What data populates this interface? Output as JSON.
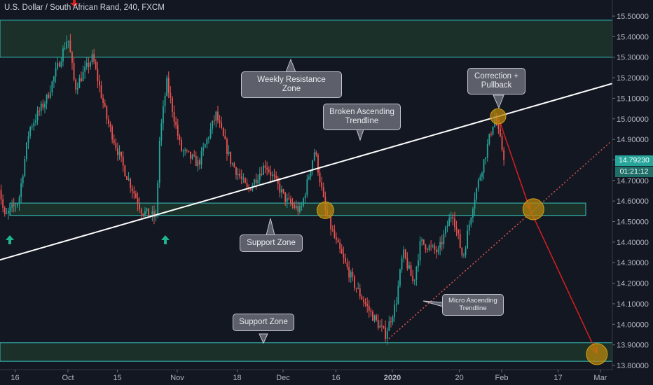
{
  "symbol": "U.S. Dollar / South African Rand, 240, FXCM",
  "colors": {
    "background": "#131722",
    "zone_fill": "#1e3a2b",
    "zone_border": "#37c5c5",
    "trendline": "#ffffff",
    "micro_trend": "#d9534f",
    "projection": "#d91e1e",
    "up_candle": "#26a69a",
    "down_candle": "#ef5350",
    "marker": "#b8860b",
    "up_arrow": "#1fb58c"
  },
  "chart_data": {
    "type": "candlestick",
    "x_ticks": [
      "16",
      "Oct",
      "15",
      "Nov",
      "18",
      "Dec",
      "16",
      "2020",
      "20",
      "Feb",
      "17",
      "Mar"
    ],
    "y_ticks": [
      "15.50000",
      "15.40000",
      "15.30000",
      "15.20000",
      "15.10000",
      "15.00000",
      "14.90000",
      "14.80000",
      "14.70000",
      "14.60000",
      "14.50000",
      "14.40000",
      "14.30000",
      "14.20000",
      "14.10000",
      "14.00000",
      "13.90000",
      "13.80000"
    ],
    "ylim": [
      13.79,
      15.52
    ],
    "current_price": "14.79230",
    "countdown": "01:21:12",
    "price_path": [
      {
        "date": "Sep 11",
        "price": 14.72
      },
      {
        "date": "Sep 13",
        "price": 14.52
      },
      {
        "date": "Sep 17",
        "price": 14.6
      },
      {
        "date": "Sep 20",
        "price": 14.95
      },
      {
        "date": "Sep 25",
        "price": 15.1
      },
      {
        "date": "Oct 1",
        "price": 15.4
      },
      {
        "date": "Oct 3",
        "price": 15.15
      },
      {
        "date": "Oct 8",
        "price": 15.3
      },
      {
        "date": "Oct 12",
        "price": 15.0
      },
      {
        "date": "Oct 17",
        "price": 14.75
      },
      {
        "date": "Oct 22",
        "price": 14.55
      },
      {
        "date": "Oct 26",
        "price": 14.52
      },
      {
        "date": "Oct 27",
        "price": 14.9
      },
      {
        "date": "Oct 29",
        "price": 15.18
      },
      {
        "date": "Nov 2",
        "price": 14.85
      },
      {
        "date": "Nov 7",
        "price": 14.78
      },
      {
        "date": "Nov 12",
        "price": 15.02
      },
      {
        "date": "Nov 16",
        "price": 14.8
      },
      {
        "date": "Nov 21",
        "price": 14.65
      },
      {
        "date": "Nov 26",
        "price": 14.78
      },
      {
        "date": "Dec 2",
        "price": 14.6
      },
      {
        "date": "Dec 6",
        "price": 14.55
      },
      {
        "date": "Dec 10",
        "price": 14.85
      },
      {
        "date": "Dec 13",
        "price": 14.55
      },
      {
        "date": "Dec 16",
        "price": 14.4
      },
      {
        "date": "Dec 21",
        "price": 14.2
      },
      {
        "date": "Dec 26",
        "price": 14.05
      },
      {
        "date": "Dec 30",
        "price": 13.95
      },
      {
        "date": "Jan 2",
        "price": 14.1
      },
      {
        "date": "Jan 4",
        "price": 14.35
      },
      {
        "date": "Jan 7",
        "price": 14.2
      },
      {
        "date": "Jan 9",
        "price": 14.4
      },
      {
        "date": "Jan 14",
        "price": 14.35
      },
      {
        "date": "Jan 18",
        "price": 14.55
      },
      {
        "date": "Jan 21",
        "price": 14.32
      },
      {
        "date": "Jan 24",
        "price": 14.6
      },
      {
        "date": "Jan 27",
        "price": 14.8
      },
      {
        "date": "Jan 30",
        "price": 15.01
      },
      {
        "date": "Feb 2",
        "price": 14.79
      }
    ],
    "zones": [
      {
        "name": "Weekly Resistance Zone",
        "low": 15.3,
        "high": 15.48
      },
      {
        "name": "Support Zone",
        "low": 14.53,
        "high": 14.59
      },
      {
        "name": "Support Zone",
        "low": 13.82,
        "high": 13.91
      }
    ],
    "trendlines": [
      {
        "name": "Broken Ascending Trendline",
        "from": {
          "date": "Sep 11",
          "price": 14.31
        },
        "to": {
          "date": "Mar 6",
          "price": 15.18
        }
      },
      {
        "name": "Micro Ascending Trendline",
        "from": {
          "date": "Dec 31",
          "price": 13.93
        },
        "to": {
          "date": "Mar 4",
          "price": 14.89
        }
      }
    ],
    "projection": [
      {
        "date": "Jan 31",
        "price": 15.01
      },
      {
        "date": "Feb 9",
        "price": 14.56
      },
      {
        "date": "Feb 28",
        "price": 13.86
      }
    ]
  },
  "annotations": {
    "weekly_resistance": "Weekly Resistance Zone",
    "correction": "Correction +\nPullback",
    "broken_trendline": "Broken Ascending\nTrendline",
    "support_mid": "Support Zone",
    "micro_trendline": "Micro Ascending\nTrendline",
    "support_low": "Support Zone"
  }
}
